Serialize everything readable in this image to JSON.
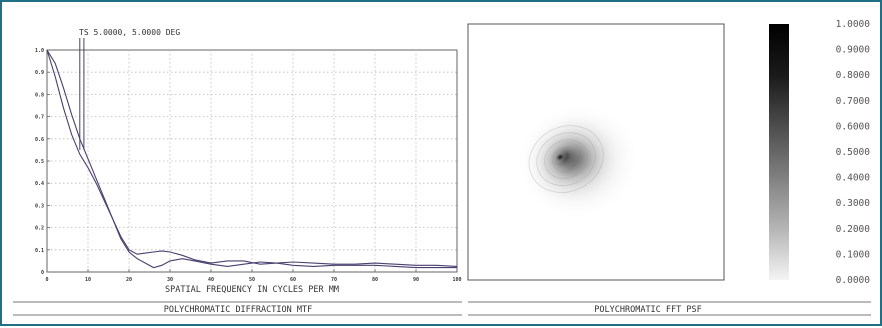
{
  "chart_data": [
    {
      "type": "line",
      "title": "POLYCHROMATIC DIFFRACTION MTF",
      "annotation": "TS 5.0000, 5.0000 DEG",
      "xlabel": "SPATIAL FREQUENCY IN CYCLES PER MM",
      "xlim": [
        0,
        100
      ],
      "ylim": [
        0,
        1.0
      ],
      "x_ticks": [
        "0",
        "10",
        "20",
        "30",
        "40",
        "50",
        "60",
        "70",
        "80",
        "90",
        "100"
      ],
      "y_ticks": [
        "0",
        "0.1",
        "0.2",
        "0.3",
        "0.4",
        "0.5",
        "0.6",
        "0.7",
        "0.8",
        "0.9",
        "1.0"
      ],
      "grid": true,
      "annotation_x": [
        8,
        9
      ],
      "series": [
        {
          "x": [
            0,
            2,
            4,
            6,
            8,
            10,
            12,
            14,
            16,
            18,
            20,
            22,
            24,
            26,
            28,
            30,
            33,
            36,
            40,
            44,
            48,
            52,
            56,
            60,
            65,
            70,
            75,
            80,
            85,
            90,
            95,
            100
          ],
          "values": [
            1.0,
            0.94,
            0.83,
            0.71,
            0.6,
            0.51,
            0.42,
            0.33,
            0.24,
            0.15,
            0.09,
            0.06,
            0.04,
            0.02,
            0.03,
            0.05,
            0.06,
            0.05,
            0.035,
            0.025,
            0.035,
            0.045,
            0.04,
            0.03,
            0.025,
            0.03,
            0.03,
            0.03,
            0.025,
            0.02,
            0.02,
            0.02
          ]
        },
        {
          "x": [
            0,
            2,
            4,
            6,
            8,
            10,
            12,
            14,
            16,
            18,
            20,
            22,
            24,
            26,
            28,
            30,
            33,
            36,
            40,
            44,
            48,
            52,
            56,
            60,
            65,
            70,
            75,
            80,
            85,
            90,
            95,
            100
          ],
          "values": [
            1.0,
            0.88,
            0.74,
            0.62,
            0.53,
            0.47,
            0.4,
            0.32,
            0.24,
            0.16,
            0.1,
            0.08,
            0.085,
            0.09,
            0.095,
            0.09,
            0.075,
            0.055,
            0.04,
            0.05,
            0.05,
            0.035,
            0.04,
            0.045,
            0.04,
            0.035,
            0.035,
            0.04,
            0.035,
            0.03,
            0.03,
            0.025
          ]
        }
      ]
    },
    {
      "type": "heatmap",
      "title": "POLYCHROMATIC FFT PSF",
      "colorbar_ticks": [
        "1.0000",
        "0.9000",
        "0.8000",
        "0.7000",
        "0.6000",
        "0.5000",
        "0.4000",
        "0.3000",
        "0.2000",
        "0.1000",
        "0.0000"
      ],
      "colorbar_range": [
        0,
        1.0
      ],
      "peak": {
        "x": 0.36,
        "y": 0.52,
        "value": 1.0
      },
      "extent": {
        "x": [
          0,
          1
        ],
        "y": [
          0,
          1
        ]
      }
    }
  ]
}
